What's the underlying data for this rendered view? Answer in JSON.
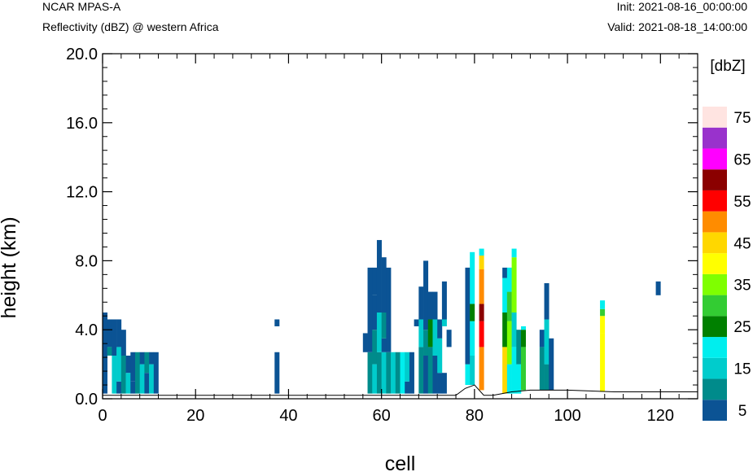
{
  "header": {
    "model": "NCAR MPAS-A",
    "variable": "Reflectivity (dBZ) @ western Africa",
    "init": "Init: 2021-08-16_00:00:00",
    "valid": "Valid: 2021-08-18_14:00:00"
  },
  "chart_data": {
    "type": "heatmap",
    "title": "Reflectivity (dBZ) @ western Africa",
    "xlabel": "cell",
    "ylabel": "height (km)",
    "xlim": [
      0,
      128
    ],
    "ylim": [
      0,
      20
    ],
    "x_ticks": [
      0,
      20,
      40,
      60,
      80,
      100,
      120
    ],
    "y_ticks": [
      "0.0",
      "4.0",
      "8.0",
      "12.0",
      "16.0",
      "20.0"
    ],
    "colorbar": {
      "unit": "[dbZ]",
      "levels": [
        5,
        10,
        15,
        20,
        25,
        30,
        35,
        40,
        45,
        50,
        55,
        60,
        65,
        70,
        75
      ],
      "labels": [
        "5",
        "15",
        "25",
        "35",
        "45",
        "55",
        "65",
        "75"
      ],
      "colors": [
        "#0b5394",
        "#008b8b",
        "#00cccc",
        "#00eeee",
        "#008000",
        "#33cc33",
        "#7fff00",
        "#ffff00",
        "#ffd700",
        "#ff8c00",
        "#ff0000",
        "#8b0000",
        "#ff00ff",
        "#9932cc",
        "#ffe4e1"
      ]
    },
    "terrain_km": [
      [
        0,
        0.2
      ],
      [
        76,
        0.2
      ],
      [
        78,
        0.6
      ],
      [
        80,
        0.8
      ],
      [
        82,
        0.2
      ],
      [
        84,
        0.2
      ],
      [
        86,
        0.3
      ],
      [
        88,
        0.4
      ],
      [
        92,
        0.5
      ],
      [
        100,
        0.5
      ],
      [
        110,
        0.4
      ],
      [
        128,
        0.4
      ]
    ],
    "columns": [
      {
        "x": 0,
        "segments": [
          [
            0.3,
            4.0,
            5
          ],
          [
            4.0,
            5.0,
            5
          ]
        ]
      },
      {
        "x": 1,
        "segments": [
          [
            3.0,
            4.6,
            5
          ],
          [
            2.5,
            3.0,
            10
          ]
        ]
      },
      {
        "x": 2,
        "segments": [
          [
            0.3,
            2.5,
            15
          ],
          [
            2.5,
            4.6,
            5
          ]
        ]
      },
      {
        "x": 3,
        "segments": [
          [
            0.3,
            1.0,
            5
          ],
          [
            1.0,
            3.0,
            15
          ],
          [
            3.0,
            4.6,
            5
          ]
        ]
      },
      {
        "x": 4,
        "segments": [
          [
            0.3,
            2.5,
            10
          ],
          [
            2.5,
            4.0,
            5
          ]
        ]
      },
      {
        "x": 5,
        "segments": [
          [
            0.3,
            1.5,
            15
          ],
          [
            1.5,
            2.5,
            5
          ]
        ]
      },
      {
        "x": 6,
        "segments": [
          [
            0.3,
            1.0,
            5
          ],
          [
            1.0,
            2.7,
            5
          ]
        ]
      },
      {
        "x": 7,
        "segments": [
          [
            0.3,
            2.7,
            10
          ]
        ]
      },
      {
        "x": 8,
        "segments": [
          [
            0.3,
            2.0,
            15
          ],
          [
            2.0,
            2.7,
            5
          ]
        ]
      },
      {
        "x": 9,
        "segments": [
          [
            0.3,
            1.5,
            5
          ],
          [
            1.5,
            2.7,
            10
          ]
        ]
      },
      {
        "x": 10,
        "segments": [
          [
            0.3,
            2.0,
            15
          ],
          [
            2.0,
            2.7,
            5
          ]
        ]
      },
      {
        "x": 11,
        "segments": [
          [
            0.3,
            2.7,
            5
          ]
        ]
      },
      {
        "x": 37,
        "segments": [
          [
            0.3,
            2.7,
            5
          ],
          [
            4.2,
            4.6,
            5
          ]
        ]
      },
      {
        "x": 56,
        "segments": [
          [
            2.7,
            3.8,
            5
          ]
        ]
      },
      {
        "x": 57,
        "segments": [
          [
            0.3,
            2.7,
            10
          ],
          [
            2.7,
            7.6,
            5
          ]
        ]
      },
      {
        "x": 58,
        "segments": [
          [
            0.3,
            2.0,
            15
          ],
          [
            2.0,
            4.0,
            10
          ],
          [
            4.0,
            6.0,
            5
          ],
          [
            6.0,
            7.6,
            5
          ]
        ]
      },
      {
        "x": 59,
        "segments": [
          [
            0.3,
            2.7,
            10
          ],
          [
            2.7,
            5.0,
            15
          ],
          [
            5.0,
            9.2,
            5
          ]
        ]
      },
      {
        "x": 60,
        "segments": [
          [
            0.3,
            2.7,
            15
          ],
          [
            2.7,
            3.5,
            5
          ],
          [
            3.5,
            5.0,
            10
          ],
          [
            5.0,
            8.2,
            5
          ]
        ]
      },
      {
        "x": 61,
        "segments": [
          [
            0.3,
            2.7,
            10
          ],
          [
            2.7,
            7.6,
            5
          ]
        ]
      },
      {
        "x": 62,
        "segments": [
          [
            0.3,
            2.7,
            15
          ]
        ]
      },
      {
        "x": 63,
        "segments": [
          [
            0.3,
            2.7,
            10
          ]
        ]
      },
      {
        "x": 64,
        "segments": [
          [
            0.3,
            2.7,
            20
          ]
        ]
      },
      {
        "x": 65,
        "segments": [
          [
            0.3,
            1.0,
            5
          ],
          [
            1.0,
            2.7,
            15
          ]
        ]
      },
      {
        "x": 66,
        "segments": [
          [
            0.3,
            2.7,
            5
          ]
        ]
      },
      {
        "x": 67,
        "segments": [
          [
            4.2,
            4.6,
            5
          ]
        ]
      },
      {
        "x": 68,
        "segments": [
          [
            0.3,
            3.0,
            10
          ],
          [
            3.0,
            4.6,
            15
          ],
          [
            4.6,
            6.5,
            5
          ]
        ]
      },
      {
        "x": 69,
        "segments": [
          [
            0.3,
            2.5,
            5
          ],
          [
            2.5,
            4.0,
            10
          ],
          [
            4.0,
            8.0,
            5
          ]
        ]
      },
      {
        "x": 70,
        "segments": [
          [
            0.3,
            3.0,
            10
          ],
          [
            3.0,
            4.6,
            25
          ],
          [
            4.6,
            6.2,
            5
          ]
        ]
      },
      {
        "x": 71,
        "segments": [
          [
            0.3,
            2.5,
            5
          ],
          [
            2.5,
            4.6,
            15
          ],
          [
            4.6,
            6.2,
            5
          ]
        ]
      },
      {
        "x": 72,
        "segments": [
          [
            0.3,
            1.5,
            5
          ],
          [
            1.5,
            3.5,
            15
          ],
          [
            3.5,
            4.6,
            5
          ]
        ]
      },
      {
        "x": 73,
        "segments": [
          [
            0.3,
            1.5,
            5
          ],
          [
            4.2,
            4.6,
            15
          ],
          [
            4.6,
            6.8,
            5
          ]
        ]
      },
      {
        "x": 74,
        "segments": [
          [
            3.0,
            4.0,
            5
          ]
        ]
      },
      {
        "x": 78,
        "segments": [
          [
            0.8,
            2.0,
            20
          ],
          [
            2.0,
            7.6,
            5
          ]
        ]
      },
      {
        "x": 79,
        "segments": [
          [
            0.8,
            2.5,
            15
          ],
          [
            2.5,
            4.5,
            20
          ],
          [
            4.5,
            5.5,
            25
          ],
          [
            5.5,
            8.5,
            20
          ]
        ]
      },
      {
        "x": 81,
        "segments": [
          [
            0.5,
            3.0,
            50
          ],
          [
            3.0,
            4.5,
            55
          ],
          [
            4.5,
            5.5,
            60
          ],
          [
            5.5,
            7.5,
            50
          ],
          [
            7.5,
            8.3,
            45
          ],
          [
            8.3,
            8.7,
            20
          ]
        ]
      },
      {
        "x": 86,
        "segments": [
          [
            0.3,
            3.0,
            45
          ],
          [
            3.0,
            5.0,
            25
          ],
          [
            5.0,
            7.0,
            20
          ],
          [
            7.0,
            7.6,
            5
          ]
        ]
      },
      {
        "x": 87,
        "segments": [
          [
            0.3,
            2.0,
            20
          ],
          [
            2.0,
            4.5,
            35
          ],
          [
            4.5,
            6.2,
            30
          ],
          [
            6.2,
            7.6,
            20
          ]
        ]
      },
      {
        "x": 88,
        "segments": [
          [
            0.3,
            3.0,
            20
          ],
          [
            3.0,
            5.0,
            15
          ],
          [
            5.0,
            8.2,
            35
          ],
          [
            8.2,
            8.7,
            20
          ]
        ]
      },
      {
        "x": 89,
        "segments": [
          [
            0.3,
            2.0,
            20
          ],
          [
            2.0,
            4.0,
            10
          ]
        ]
      },
      {
        "x": 90,
        "segments": [
          [
            0.5,
            3.0,
            30
          ],
          [
            3.0,
            4.0,
            25
          ],
          [
            4.0,
            4.2,
            20
          ]
        ]
      },
      {
        "x": 94,
        "segments": [
          [
            0.5,
            3.0,
            10
          ],
          [
            3.0,
            4.0,
            5
          ]
        ]
      },
      {
        "x": 95,
        "segments": [
          [
            0.5,
            2.0,
            10
          ],
          [
            2.0,
            4.6,
            15
          ],
          [
            4.6,
            6.7,
            5
          ]
        ]
      },
      {
        "x": 96,
        "segments": [
          [
            0.5,
            3.5,
            5
          ]
        ]
      },
      {
        "x": 107,
        "segments": [
          [
            0.4,
            3.8,
            40
          ],
          [
            3.8,
            4.8,
            40
          ],
          [
            4.8,
            5.2,
            30
          ],
          [
            5.2,
            5.7,
            20
          ]
        ]
      },
      {
        "x": 119,
        "segments": [
          [
            6.0,
            6.8,
            5
          ]
        ]
      }
    ]
  }
}
